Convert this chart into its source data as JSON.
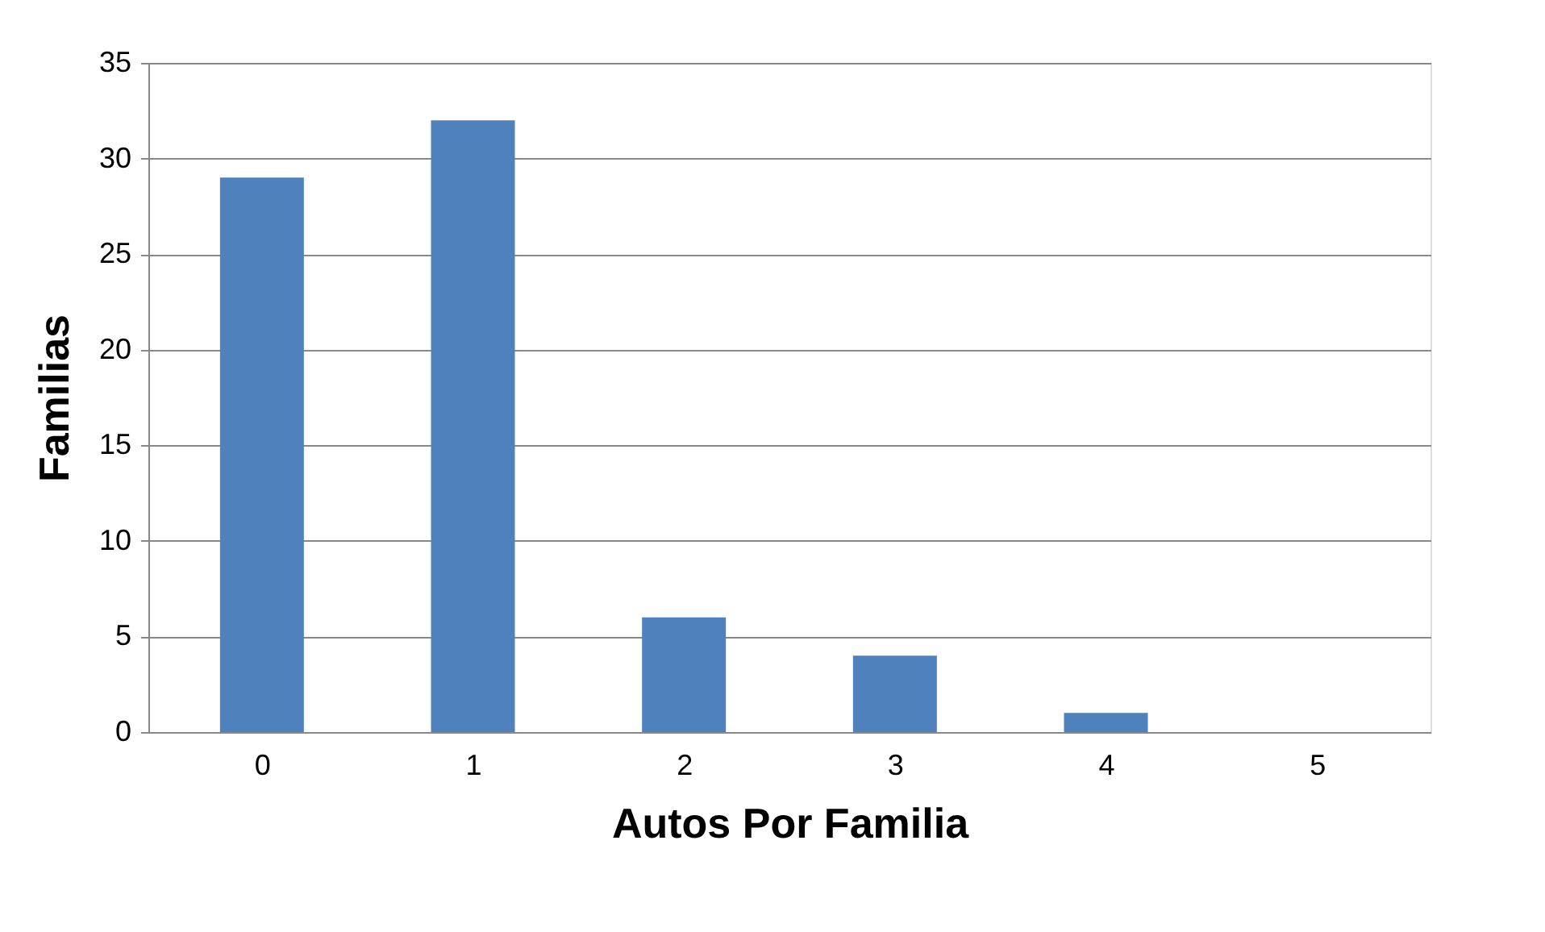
{
  "chart_data": {
    "type": "bar",
    "xlabel": "Autos Por Familia",
    "ylabel": "Familias",
    "categories": [
      "0",
      "1",
      "2",
      "3",
      "4",
      "5"
    ],
    "values": [
      29,
      32,
      6,
      4,
      1,
      0
    ],
    "color": "#4f81bd",
    "ylim": [
      0,
      35
    ],
    "yticks": [
      0,
      5,
      10,
      15,
      20,
      25,
      30,
      35
    ],
    "grid": "y"
  }
}
